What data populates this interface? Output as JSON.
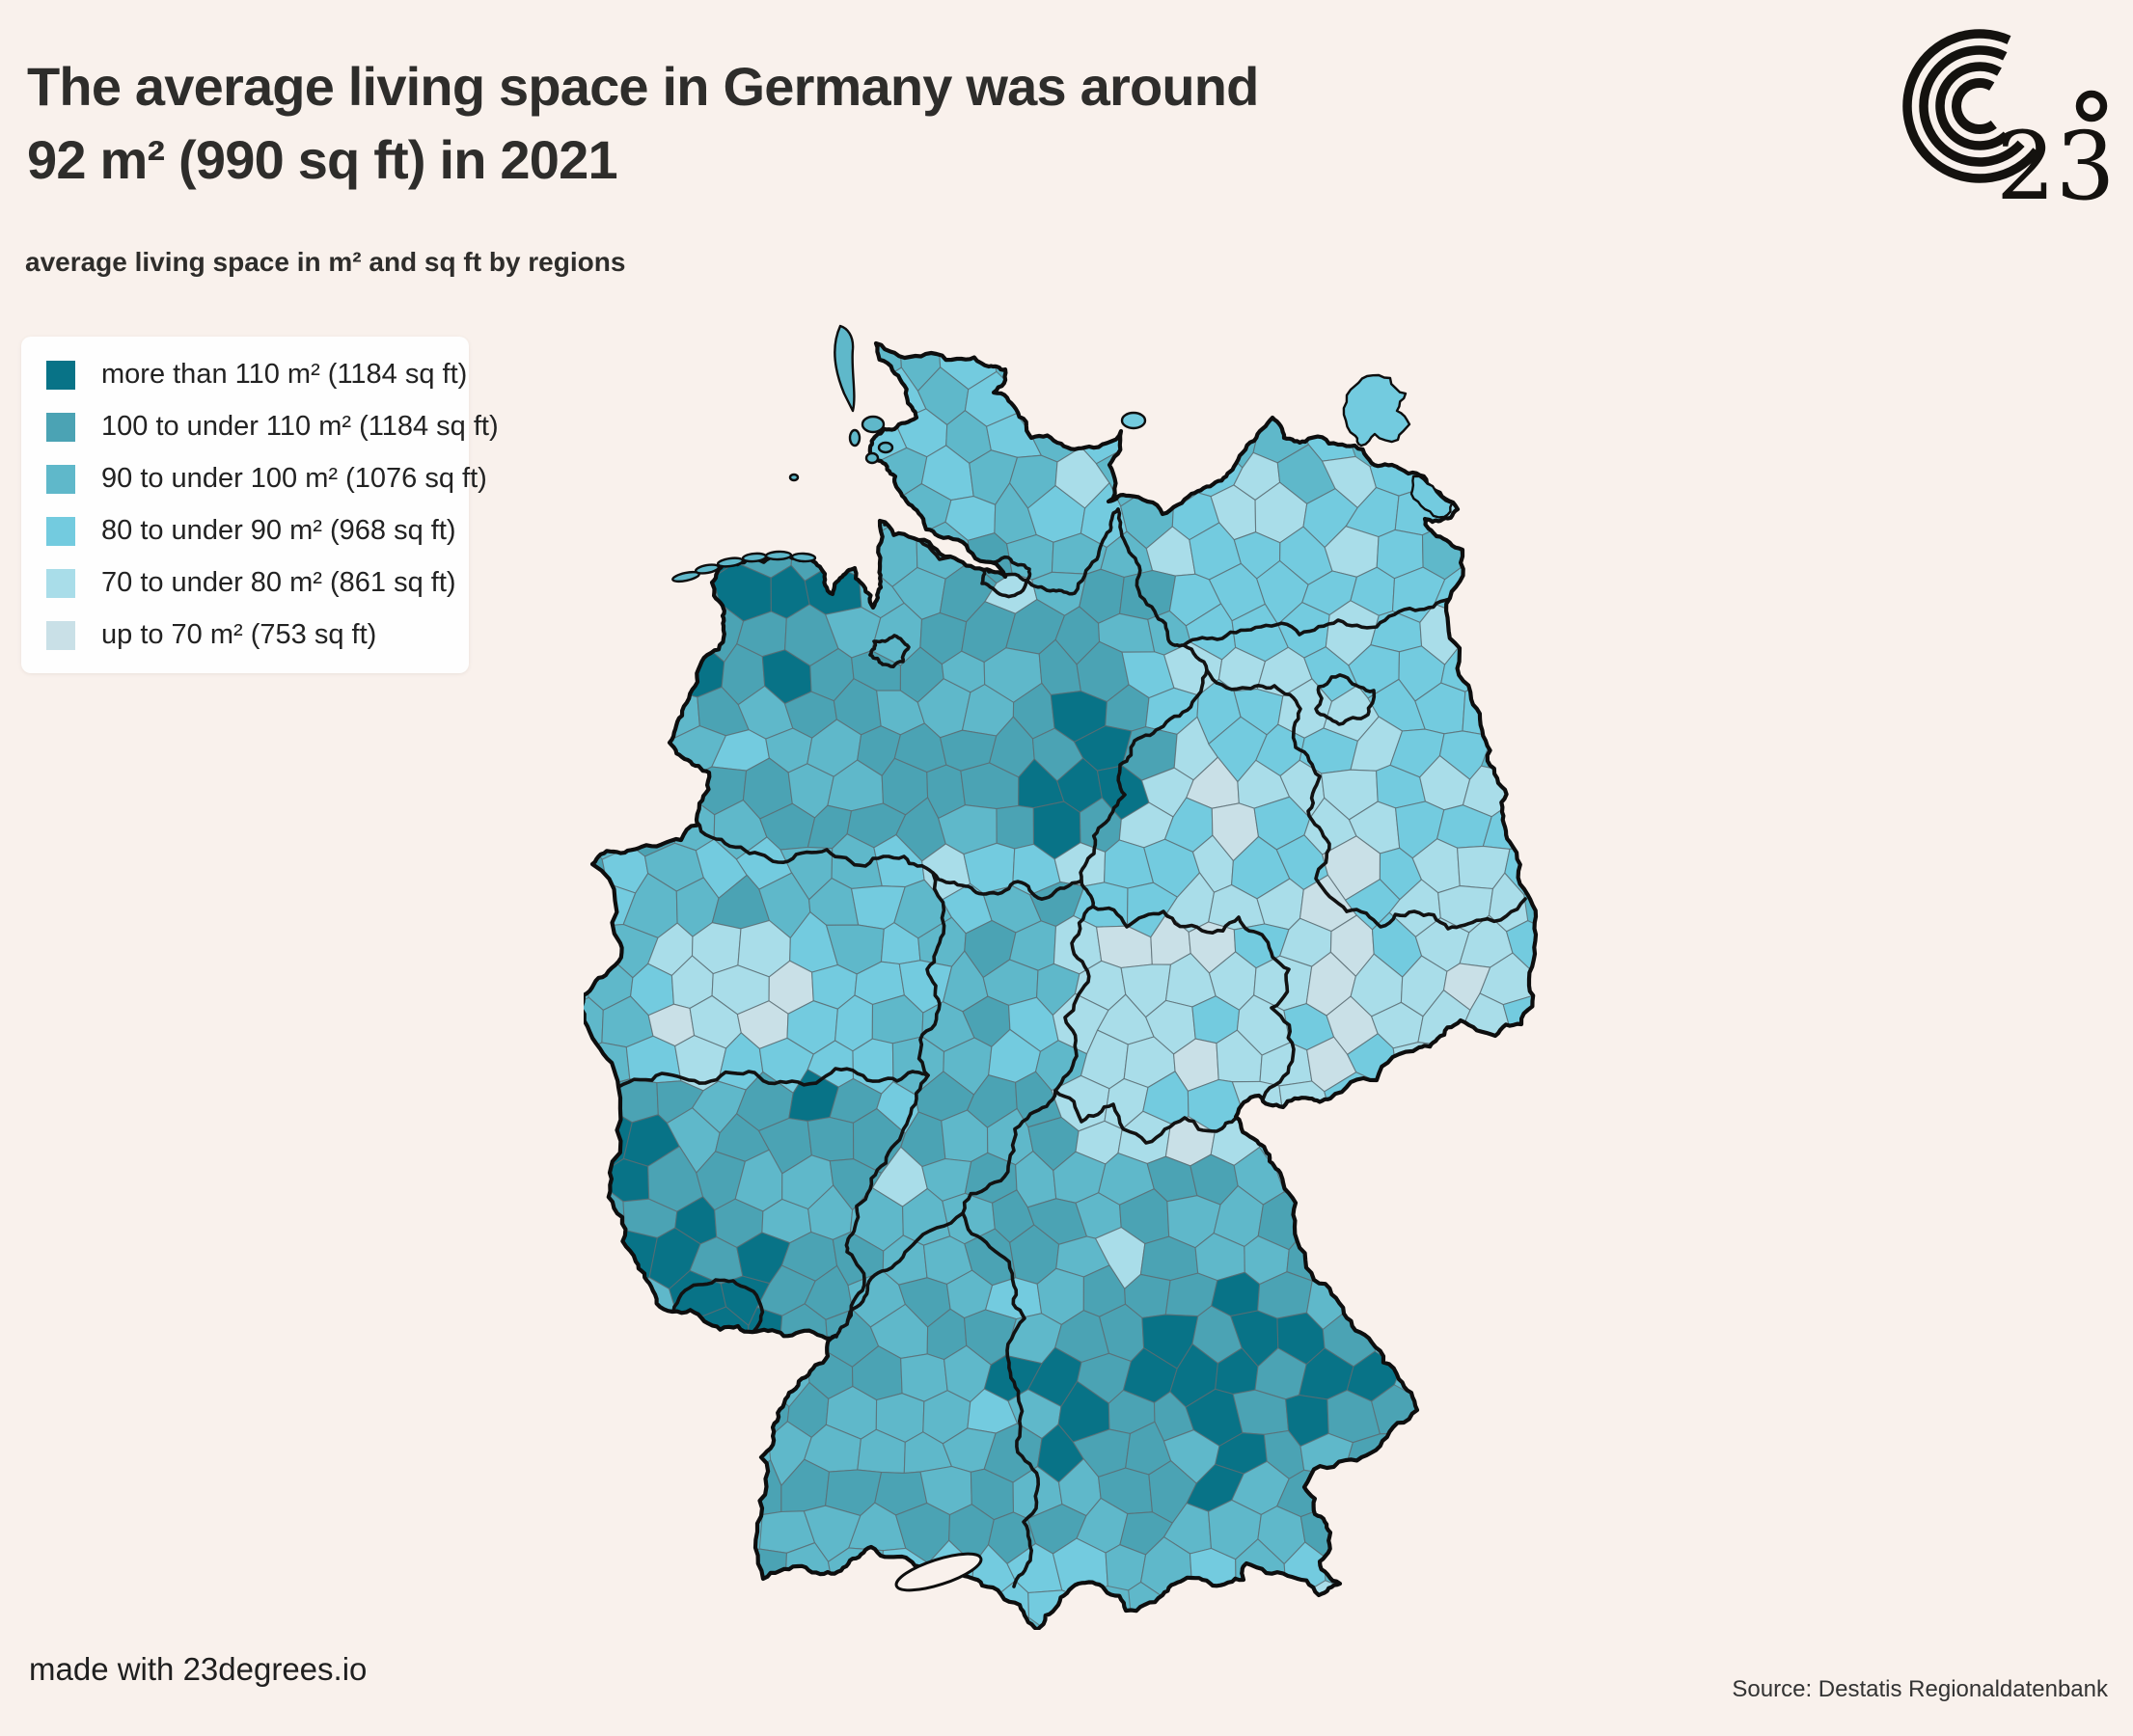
{
  "header": {
    "title_line1": "The average living space in Germany was around",
    "title_line2": "92 m² (990 sq ft) in 2021",
    "subtitle": "average living space in m² and sq ft by regions"
  },
  "logo": {
    "number": "23",
    "degree_symbol": "°"
  },
  "legend": {
    "items": [
      {
        "label": "more than 110 m² (1184 sq ft)",
        "color": "#087387"
      },
      {
        "label": "100 to under 110 m² (1184 sq ft)",
        "color": "#4ba3b4"
      },
      {
        "label": "90 to under 100 m² (1076 sq ft)",
        "color": "#5fb8ca"
      },
      {
        "label": "80 to under 90 m² (968 sq ft)",
        "color": "#73cbdf"
      },
      {
        "label": "70 to under 80 m² (861 sq ft)",
        "color": "#a9dde9"
      },
      {
        "label": "up to 70 m² (753 sq ft)",
        "color": "#c9e0e7"
      }
    ]
  },
  "map": {
    "type": "choropleth",
    "region": "Germany",
    "unit": "m² / sq ft",
    "year": "2021",
    "border_colors": {
      "state": "#121212",
      "district": "#5b6d73"
    },
    "background": "#f9f1ec"
  },
  "footer": {
    "made_with": "made with 23degrees.io",
    "source": "Source: Destatis Regionaldatenbank"
  }
}
